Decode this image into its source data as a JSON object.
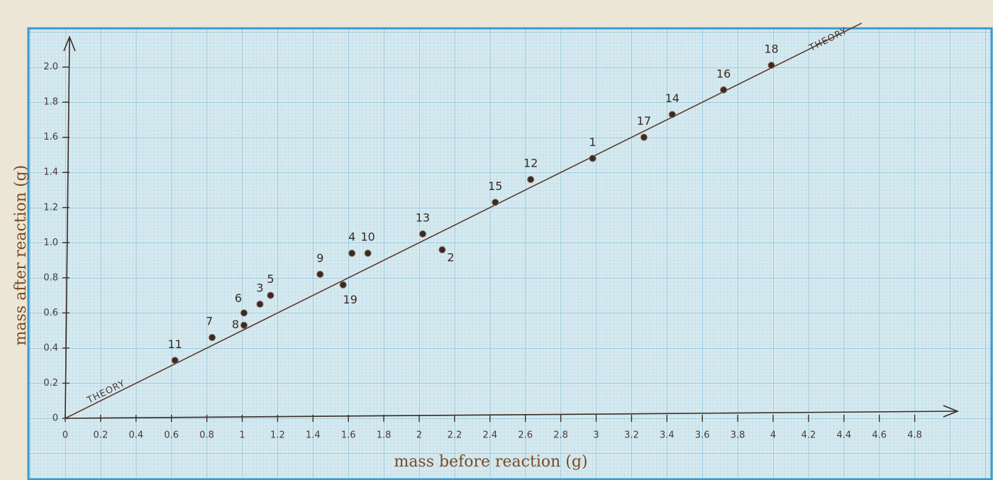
{
  "chart_data": {
    "type": "scatter",
    "xlabel": "mass before reaction (g)",
    "ylabel": "mass after reaction (g)",
    "labels": [
      "1",
      "2",
      "3",
      "4",
      "5",
      "6",
      "7",
      "8",
      "9",
      "10",
      "11",
      "12",
      "13",
      "14",
      "15",
      "16",
      "17",
      "18",
      "19"
    ],
    "x": [
      2.98,
      2.13,
      1.1,
      1.62,
      1.16,
      1.01,
      0.83,
      1.01,
      1.44,
      1.71,
      0.62,
      2.63,
      2.02,
      3.43,
      2.43,
      3.72,
      3.27,
      3.99,
      1.57
    ],
    "values": [
      1.48,
      0.96,
      0.65,
      0.94,
      0.7,
      0.6,
      0.46,
      0.53,
      0.82,
      0.94,
      0.33,
      1.36,
      1.05,
      1.73,
      1.23,
      1.87,
      1.6,
      2.01,
      0.76
    ],
    "color": "#3a2a22",
    "theory": {
      "labels": [
        "THEORY",
        "THEORY"
      ],
      "x": [
        0,
        4.5
      ],
      "values": [
        0,
        2.25
      ],
      "color": "#5a3a2a"
    },
    "xlim": [
      0,
      5.05
    ],
    "ylim": [
      0,
      2.18
    ],
    "xticks": [
      0,
      0.2,
      0.4,
      0.6,
      0.8,
      1,
      1.2,
      1.4,
      1.6,
      1.8,
      2,
      2.2,
      2.4,
      2.6,
      2.8,
      3,
      3.2,
      3.4,
      3.6,
      3.8,
      4,
      4.2,
      4.4,
      4.6,
      4.8
    ],
    "yticks": [
      0,
      0.2,
      0.4,
      0.6,
      0.8,
      {
        "value": 1,
        "label": "1.0"
      },
      1.2,
      1.4,
      1.6,
      1.8,
      {
        "value": 2,
        "label": "2.0"
      }
    ],
    "grid": true
  }
}
